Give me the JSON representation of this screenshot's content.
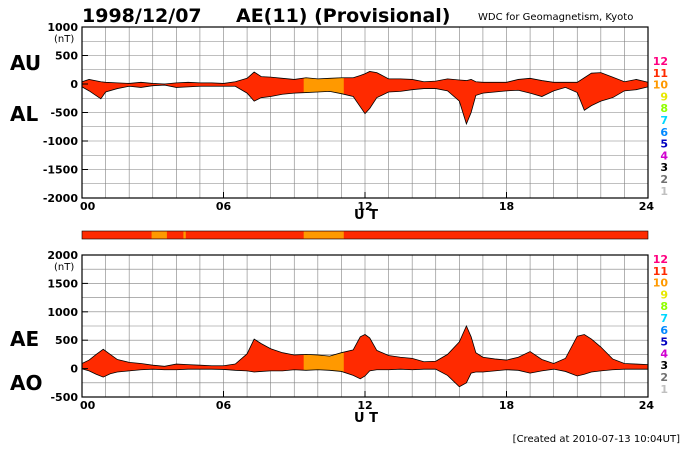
{
  "header": {
    "date": "1998/12/07",
    "title": "AE(11) (Provisional)",
    "source": "WDC for Geomagnetism, Kyoto"
  },
  "footer": {
    "created": "[Created at 2010-07-13 10:04UT]"
  },
  "colors": {
    "fill_main": "#ff2a00",
    "fill_alt": "#ff9900",
    "axis": "#000000",
    "grid": "#808080"
  },
  "station_scale": [
    {
      "label": "12",
      "color": "#ff0080"
    },
    {
      "label": "11",
      "color": "#ff2a00"
    },
    {
      "label": "10",
      "color": "#ff9900"
    },
    {
      "label": "9",
      "color": "#e8e800"
    },
    {
      "label": "8",
      "color": "#90ff00"
    },
    {
      "label": "7",
      "color": "#00d8ff"
    },
    {
      "label": "6",
      "color": "#0088ff"
    },
    {
      "label": "5",
      "color": "#0000c0"
    },
    {
      "label": "4",
      "color": "#d000d0"
    },
    {
      "label": "3",
      "color": "#000000"
    },
    {
      "label": "2",
      "color": "#707070"
    },
    {
      "label": "1",
      "color": "#c0c0c0"
    }
  ],
  "chart_data": [
    {
      "type": "area",
      "name": "AU/AL",
      "labels": {
        "upper": "AU",
        "lower": "AL",
        "yunit": "(nT)",
        "xlabel": "U T"
      },
      "ylim": [
        -2000,
        1000
      ],
      "yticks": [
        1000,
        500,
        0,
        -500,
        -1000,
        -1500,
        -2000
      ],
      "xlim": [
        0,
        24
      ],
      "xticks": [
        0,
        6,
        12,
        18,
        24
      ],
      "xtick_labels": [
        "00",
        "06",
        "12",
        "18",
        "24"
      ],
      "grid": true,
      "orange_segments": [
        [
          9.4,
          11.1
        ]
      ],
      "x": [
        0,
        0.3,
        0.8,
        1.0,
        1.5,
        2.0,
        2.5,
        3.0,
        3.5,
        4.0,
        4.5,
        5.0,
        5.5,
        6.0,
        6.5,
        7.0,
        7.3,
        7.6,
        8.0,
        8.5,
        9.0,
        9.5,
        10.0,
        10.5,
        11.0,
        11.5,
        11.8,
        12.0,
        12.2,
        12.5,
        13.0,
        13.5,
        14.0,
        14.5,
        15.0,
        15.5,
        16.0,
        16.3,
        16.5,
        16.7,
        17.0,
        17.5,
        18.0,
        18.5,
        19.0,
        19.5,
        20.0,
        20.5,
        21.0,
        21.3,
        21.6,
        22.0,
        22.5,
        23.0,
        23.5,
        24.0
      ],
      "au": [
        40,
        80,
        40,
        30,
        20,
        10,
        30,
        10,
        0,
        20,
        30,
        20,
        20,
        10,
        40,
        100,
        210,
        130,
        120,
        100,
        80,
        110,
        90,
        100,
        110,
        110,
        150,
        180,
        220,
        200,
        90,
        90,
        80,
        40,
        50,
        90,
        70,
        60,
        80,
        40,
        30,
        30,
        30,
        80,
        100,
        60,
        30,
        30,
        30,
        110,
        190,
        200,
        120,
        40,
        80,
        30
      ],
      "al": [
        -50,
        -120,
        -260,
        -140,
        -80,
        -40,
        -60,
        -30,
        -20,
        -60,
        -50,
        -40,
        -40,
        -40,
        -40,
        -160,
        -300,
        -240,
        -220,
        -180,
        -160,
        -150,
        -140,
        -130,
        -170,
        -220,
        -400,
        -520,
        -430,
        -240,
        -140,
        -130,
        -100,
        -80,
        -80,
        -120,
        -300,
        -700,
        -500,
        -200,
        -160,
        -140,
        -120,
        -110,
        -160,
        -220,
        -120,
        -60,
        -150,
        -460,
        -380,
        -300,
        -240,
        -120,
        -100,
        -50
      ]
    },
    {
      "type": "area",
      "name": "AE/AO",
      "labels": {
        "upper": "AE",
        "lower": "AO",
        "yunit": "(nT)",
        "xlabel": "U T"
      },
      "ylim": [
        -500,
        2000
      ],
      "yticks": [
        2000,
        1500,
        1000,
        500,
        0,
        -500
      ],
      "xlim": [
        0,
        24
      ],
      "xticks": [
        0,
        6,
        12,
        18,
        24
      ],
      "xtick_labels": [
        "00",
        "06",
        "12",
        "18",
        "24"
      ],
      "grid": true,
      "orange_segments": [
        [
          9.4,
          11.1
        ]
      ],
      "x": [
        0,
        0.3,
        0.6,
        0.9,
        1.2,
        1.5,
        2.0,
        2.5,
        3.0,
        3.5,
        4.0,
        4.5,
        5.0,
        5.5,
        6.0,
        6.5,
        7.0,
        7.3,
        7.6,
        8.0,
        8.5,
        9.0,
        9.5,
        10.0,
        10.5,
        11.0,
        11.5,
        11.8,
        12.0,
        12.2,
        12.5,
        13.0,
        13.5,
        14.0,
        14.5,
        15.0,
        15.5,
        16.0,
        16.3,
        16.5,
        16.7,
        17.0,
        17.5,
        18.0,
        18.5,
        19.0,
        19.5,
        20.0,
        20.5,
        21.0,
        21.3,
        21.6,
        22.0,
        22.5,
        23.0,
        23.5,
        24.0
      ],
      "ae": [
        90,
        150,
        250,
        340,
        250,
        160,
        110,
        90,
        60,
        40,
        80,
        70,
        60,
        50,
        50,
        80,
        260,
        520,
        440,
        350,
        280,
        240,
        250,
        240,
        220,
        280,
        330,
        560,
        600,
        540,
        320,
        230,
        200,
        180,
        120,
        130,
        250,
        470,
        750,
        560,
        280,
        200,
        170,
        150,
        200,
        300,
        160,
        90,
        180,
        570,
        600,
        520,
        380,
        170,
        90,
        80,
        70
      ],
      "ao": [
        -5,
        -40,
        -100,
        -150,
        -90,
        -60,
        -40,
        -20,
        -10,
        -20,
        -20,
        -10,
        -10,
        -10,
        -15,
        -30,
        -40,
        -60,
        -50,
        -40,
        -40,
        -20,
        -30,
        -20,
        -30,
        -50,
        -120,
        -180,
        -130,
        -40,
        -20,
        -20,
        -10,
        -20,
        -10,
        -10,
        -120,
        -320,
        -250,
        -80,
        -60,
        -60,
        -40,
        -20,
        -30,
        -80,
        -40,
        -10,
        -50,
        -130,
        -100,
        -60,
        -40,
        -20,
        -10,
        -10,
        -10
      ]
    }
  ]
}
